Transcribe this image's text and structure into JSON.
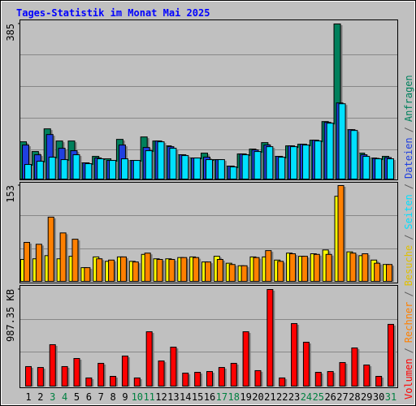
{
  "chart_data": [
    {
      "type": "bar",
      "title": "Tages-Statistik im Monat Mai 2025",
      "legend_separator": "/",
      "series": [
        {
          "name": "Anfragen",
          "color": "#00805c",
          "values": [
            94,
            70,
            126,
            96,
            96,
            42,
            58,
            52,
            100,
            48,
            106,
            96,
            84,
            62,
            54,
            66,
            50,
            34,
            64,
            76,
            92,
            58,
            84,
            88,
            98,
            144,
            385,
            124,
            66,
            54,
            58
          ]
        },
        {
          "name": "Dateien",
          "color": "#2040e0",
          "values": [
            86,
            62,
            112,
            78,
            72,
            42,
            54,
            48,
            86,
            48,
            80,
            96,
            82,
            62,
            54,
            56,
            50,
            34,
            64,
            74,
            86,
            58,
            84,
            88,
            98,
            142,
            190,
            124,
            62,
            53,
            55
          ]
        },
        {
          "name": "Seiten",
          "color": "#00e0ff",
          "values": [
            38,
            46,
            56,
            50,
            62,
            40,
            52,
            48,
            52,
            48,
            72,
            94,
            78,
            60,
            54,
            50,
            50,
            32,
            62,
            70,
            82,
            56,
            82,
            86,
            96,
            140,
            188,
            122,
            58,
            52,
            52
          ]
        }
      ],
      "ylim": [
        0,
        385
      ],
      "yticks": [
        385
      ]
    },
    {
      "type": "bar",
      "series": [
        {
          "name": "Besuche",
          "color": "#ffff00",
          "values": [
            36,
            37,
            42,
            37,
            41,
            23,
            40,
            33,
            40,
            33,
            44,
            37,
            37,
            39,
            40,
            32,
            41,
            30,
            26,
            40,
            40,
            35,
            46,
            41,
            45,
            51,
            136,
            48,
            42,
            35,
            28
          ]
        },
        {
          "name": "Rechner",
          "color": "#ff8000",
          "values": [
            63,
            60,
            103,
            78,
            68,
            23,
            37,
            35,
            40,
            32,
            46,
            36,
            36,
            39,
            39,
            32,
            36,
            28,
            26,
            39,
            50,
            33,
            45,
            41,
            44,
            44,
            153,
            46,
            45,
            30,
            28
          ]
        }
      ],
      "ylim": [
        0,
        153
      ],
      "yticks": [
        153
      ]
    },
    {
      "type": "bar",
      "categories": [
        "1",
        "2",
        "3",
        "4",
        "5",
        "6",
        "7",
        "8",
        "9",
        "10",
        "11",
        "12",
        "13",
        "14",
        "15",
        "16",
        "17",
        "18",
        "19",
        "20",
        "21",
        "22",
        "23",
        "24",
        "25",
        "26",
        "27",
        "28",
        "29",
        "30",
        "31"
      ],
      "category_colors": [
        "#000000",
        "#000000",
        "#008040",
        "#008040",
        "#000000",
        "#000000",
        "#000000",
        "#000000",
        "#000000",
        "#008040",
        "#008040",
        "#000000",
        "#000000",
        "#000000",
        "#000000",
        "#000000",
        "#008040",
        "#008040",
        "#000000",
        "#000000",
        "#000000",
        "#000000",
        "#000000",
        "#008040",
        "#008040",
        "#000000",
        "#000000",
        "#000000",
        "#000000",
        "#000000",
        "#008040"
      ],
      "series": [
        {
          "name": "Volumen",
          "color": "#ff0000",
          "values": [
            206,
            197,
            428,
            206,
            288,
            91,
            239,
            107,
            313,
            91,
            559,
            263,
            403,
            140,
            148,
            156,
            197,
            239,
            559,
            165,
            987.35,
            91,
            642,
            453,
            148,
            156,
            247,
            395,
            222,
            107,
            634
          ]
        }
      ],
      "ylim": [
        0,
        987.35
      ],
      "yticks": [
        {
          "value": 987.35,
          "label": "987.35 KB"
        }
      ]
    }
  ]
}
